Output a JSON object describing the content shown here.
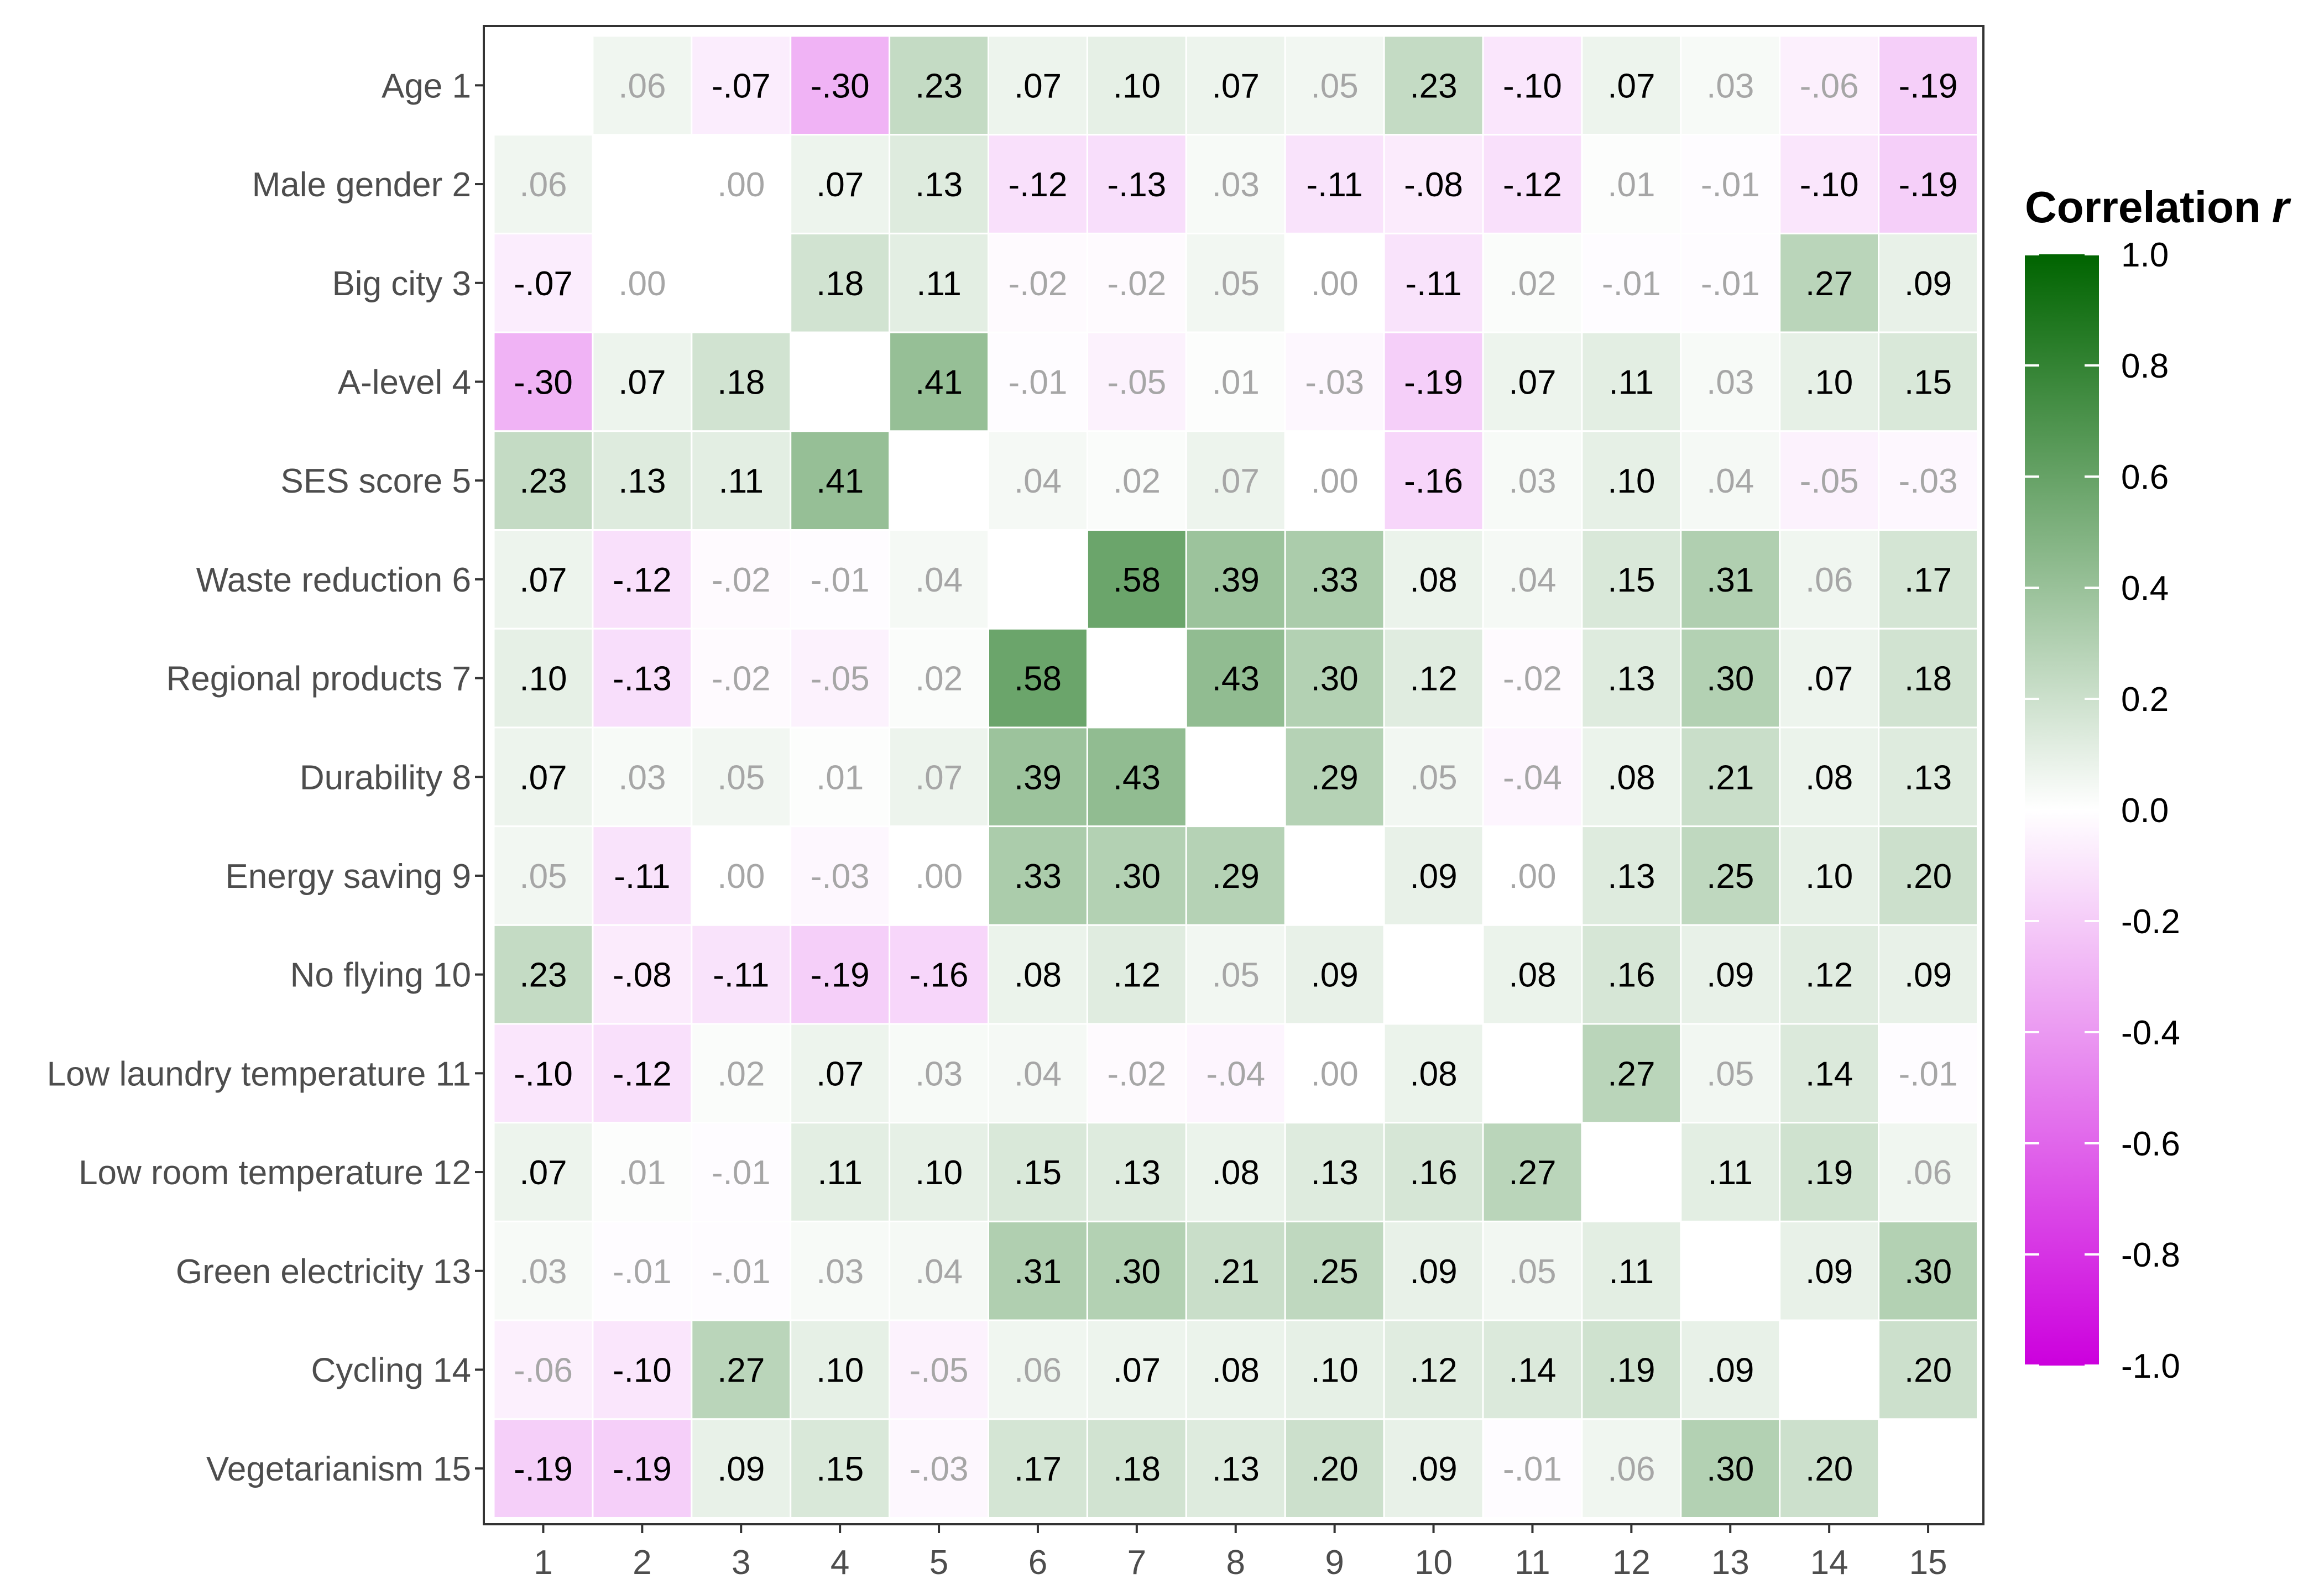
{
  "chart_data": {
    "type": "heatmap",
    "legend_title": "Correlation",
    "legend_title_symbol": "r",
    "legend_position": "right",
    "scale_range": [
      -1.0,
      1.0
    ],
    "legend_ticks": [
      "1.0",
      "0.8",
      "0.6",
      "0.4",
      "0.2",
      "0.0",
      "-0.2",
      "-0.4",
      "-0.6",
      "-0.8",
      "-1.0"
    ],
    "legend_tick_values": [
      1.0,
      0.8,
      0.6,
      0.4,
      0.2,
      0.0,
      -0.2,
      -0.4,
      -0.6,
      -0.8,
      -1.0
    ],
    "colors": {
      "negative": "#cc00dd",
      "zero": "#ffffff",
      "positive": "#006400",
      "significant_text": "#000000",
      "nonsignificant_text": "#a6a6a6"
    },
    "row_labels": [
      "Age 1",
      "Male gender 2",
      "Big city 3",
      "A-level 4",
      "SES score 5",
      "Waste reduction 6",
      "Regional products 7",
      "Durability 8",
      "Energy saving 9",
      "No flying 10",
      "Low laundry temperature 11",
      "Low room temperature 12",
      "Green electricity 13",
      "Cycling 14",
      "Vegetarianism 15"
    ],
    "col_labels": [
      "1",
      "2",
      "3",
      "4",
      "5",
      "6",
      "7",
      "8",
      "9",
      "10",
      "11",
      "12",
      "13",
      "14",
      "15"
    ],
    "values": [
      [
        null,
        0.06,
        -0.07,
        -0.3,
        0.23,
        0.07,
        0.1,
        0.07,
        0.05,
        0.23,
        -0.1,
        0.07,
        0.03,
        -0.06,
        -0.19
      ],
      [
        0.06,
        null,
        0.0,
        0.07,
        0.13,
        -0.12,
        -0.13,
        0.03,
        -0.11,
        -0.08,
        -0.12,
        0.01,
        -0.01,
        -0.1,
        -0.19
      ],
      [
        -0.07,
        0.0,
        null,
        0.18,
        0.11,
        -0.02,
        -0.02,
        0.05,
        0.0,
        -0.11,
        0.02,
        -0.01,
        -0.01,
        0.27,
        0.09
      ],
      [
        -0.3,
        0.07,
        0.18,
        null,
        0.41,
        -0.01,
        -0.05,
        0.01,
        -0.03,
        -0.19,
        0.07,
        0.11,
        0.03,
        0.1,
        0.15
      ],
      [
        0.23,
        0.13,
        0.11,
        0.41,
        null,
        0.04,
        0.02,
        0.07,
        0.0,
        -0.16,
        0.03,
        0.1,
        0.04,
        -0.05,
        -0.03
      ],
      [
        0.07,
        -0.12,
        -0.02,
        -0.01,
        0.04,
        null,
        0.58,
        0.39,
        0.33,
        0.08,
        0.04,
        0.15,
        0.31,
        0.06,
        0.17
      ],
      [
        0.1,
        -0.13,
        -0.02,
        -0.05,
        0.02,
        0.58,
        null,
        0.43,
        0.3,
        0.12,
        -0.02,
        0.13,
        0.3,
        0.07,
        0.18
      ],
      [
        0.07,
        0.03,
        0.05,
        0.01,
        0.07,
        0.39,
        0.43,
        null,
        0.29,
        0.05,
        -0.04,
        0.08,
        0.21,
        0.08,
        0.13
      ],
      [
        0.05,
        -0.11,
        0.0,
        -0.03,
        0.0,
        0.33,
        0.3,
        0.29,
        null,
        0.09,
        0.0,
        0.13,
        0.25,
        0.1,
        0.2
      ],
      [
        0.23,
        -0.08,
        -0.11,
        -0.19,
        -0.16,
        0.08,
        0.12,
        0.05,
        0.09,
        null,
        0.08,
        0.16,
        0.09,
        0.12,
        0.09
      ],
      [
        -0.1,
        -0.12,
        0.02,
        0.07,
        0.03,
        0.04,
        -0.02,
        -0.04,
        0.0,
        0.08,
        null,
        0.27,
        0.05,
        0.14,
        -0.01
      ],
      [
        0.07,
        0.01,
        -0.01,
        0.11,
        0.1,
        0.15,
        0.13,
        0.08,
        0.13,
        0.16,
        0.27,
        null,
        0.11,
        0.19,
        0.06
      ],
      [
        0.03,
        -0.01,
        -0.01,
        0.03,
        0.04,
        0.31,
        0.3,
        0.21,
        0.25,
        0.09,
        0.05,
        0.11,
        null,
        0.09,
        0.3
      ],
      [
        -0.06,
        -0.1,
        0.27,
        0.1,
        -0.05,
        0.06,
        0.07,
        0.08,
        0.1,
        0.12,
        0.14,
        0.19,
        0.09,
        null,
        0.2
      ],
      [
        -0.19,
        -0.19,
        0.09,
        0.15,
        -0.03,
        0.17,
        0.18,
        0.13,
        0.2,
        0.09,
        -0.01,
        0.06,
        0.3,
        0.2,
        null
      ]
    ],
    "labels": [
      [
        "",
        ".06",
        "-.07",
        "-.30",
        ".23",
        ".07",
        ".10",
        ".07",
        ".05",
        ".23",
        "-.10",
        ".07",
        ".03",
        "-.06",
        "-.19"
      ],
      [
        ".06",
        "",
        ".00",
        ".07",
        ".13",
        "-.12",
        "-.13",
        ".03",
        "-.11",
        "-.08",
        "-.12",
        ".01",
        "-.01",
        "-.10",
        "-.19"
      ],
      [
        "-.07",
        ".00",
        "",
        ".18",
        ".11",
        "-.02",
        "-.02",
        ".05",
        ".00",
        "-.11",
        ".02",
        "-.01",
        "-.01",
        ".27",
        ".09"
      ],
      [
        "-.30",
        ".07",
        ".18",
        "",
        ".41",
        "-.01",
        "-.05",
        ".01",
        "-.03",
        "-.19",
        ".07",
        ".11",
        ".03",
        ".10",
        ".15"
      ],
      [
        ".23",
        ".13",
        ".11",
        ".41",
        "",
        ".04",
        ".02",
        ".07",
        ".00",
        "-.16",
        ".03",
        ".10",
        ".04",
        "-.05",
        "-.03"
      ],
      [
        ".07",
        "-.12",
        "-.02",
        "-.01",
        ".04",
        "",
        ".58",
        ".39",
        ".33",
        ".08",
        ".04",
        ".15",
        ".31",
        ".06",
        ".17"
      ],
      [
        ".10",
        "-.13",
        "-.02",
        "-.05",
        ".02",
        ".58",
        "",
        ".43",
        ".30",
        ".12",
        "-.02",
        ".13",
        ".30",
        ".07",
        ".18"
      ],
      [
        ".07",
        ".03",
        ".05",
        ".01",
        ".07",
        ".39",
        ".43",
        "",
        ".29",
        ".05",
        "-.04",
        ".08",
        ".21",
        ".08",
        ".13"
      ],
      [
        ".05",
        "-.11",
        ".00",
        "-.03",
        ".00",
        ".33",
        ".30",
        ".29",
        "",
        ".09",
        ".00",
        ".13",
        ".25",
        ".10",
        ".20"
      ],
      [
        ".23",
        "-.08",
        "-.11",
        "-.19",
        "-.16",
        ".08",
        ".12",
        ".05",
        ".09",
        "",
        ".08",
        ".16",
        ".09",
        ".12",
        ".09"
      ],
      [
        "-.10",
        "-.12",
        ".02",
        ".07",
        ".03",
        ".04",
        "-.02",
        "-.04",
        ".00",
        ".08",
        "",
        ".27",
        ".05",
        ".14",
        "-.01"
      ],
      [
        ".07",
        ".01",
        "-.01",
        ".11",
        ".10",
        ".15",
        ".13",
        ".08",
        ".13",
        ".16",
        ".27",
        "",
        ".11",
        ".19",
        ".06"
      ],
      [
        ".03",
        "-.01",
        "-.01",
        ".03",
        ".04",
        ".31",
        ".30",
        ".21",
        ".25",
        ".09",
        ".05",
        ".11",
        "",
        ".09",
        ".30"
      ],
      [
        "-.06",
        "-.10",
        ".27",
        ".10",
        "-.05",
        ".06",
        ".07",
        ".08",
        ".10",
        ".12",
        ".14",
        ".19",
        ".09",
        "",
        ".20"
      ],
      [
        "-.19",
        "-.19",
        ".09",
        ".15",
        "-.03",
        ".17",
        ".18",
        ".13",
        ".20",
        ".09",
        "-.01",
        ".06",
        ".30",
        ".20",
        ""
      ]
    ],
    "significant": [
      [
        false,
        false,
        true,
        true,
        true,
        true,
        true,
        true,
        false,
        true,
        true,
        true,
        false,
        false,
        true
      ],
      [
        false,
        false,
        false,
        true,
        true,
        true,
        true,
        false,
        true,
        true,
        true,
        false,
        false,
        true,
        true
      ],
      [
        true,
        false,
        false,
        true,
        true,
        false,
        false,
        false,
        false,
        true,
        false,
        false,
        false,
        true,
        true
      ],
      [
        true,
        true,
        true,
        false,
        true,
        false,
        false,
        false,
        false,
        true,
        true,
        true,
        false,
        true,
        true
      ],
      [
        true,
        true,
        true,
        true,
        false,
        false,
        false,
        false,
        false,
        true,
        false,
        true,
        false,
        false,
        false
      ],
      [
        true,
        true,
        false,
        false,
        false,
        false,
        true,
        true,
        true,
        true,
        false,
        true,
        true,
        false,
        true
      ],
      [
        true,
        true,
        false,
        false,
        false,
        true,
        false,
        true,
        true,
        true,
        false,
        true,
        true,
        true,
        true
      ],
      [
        true,
        false,
        false,
        false,
        false,
        true,
        true,
        false,
        true,
        false,
        false,
        true,
        true,
        true,
        true
      ],
      [
        false,
        true,
        false,
        false,
        false,
        true,
        true,
        true,
        false,
        true,
        false,
        true,
        true,
        true,
        true
      ],
      [
        true,
        true,
        true,
        true,
        true,
        true,
        true,
        false,
        true,
        false,
        true,
        true,
        true,
        true,
        true
      ],
      [
        true,
        true,
        false,
        true,
        false,
        false,
        false,
        false,
        false,
        true,
        false,
        true,
        false,
        true,
        false
      ],
      [
        true,
        false,
        false,
        true,
        true,
        true,
        true,
        true,
        true,
        true,
        true,
        false,
        true,
        true,
        false
      ],
      [
        false,
        false,
        false,
        false,
        false,
        true,
        true,
        true,
        true,
        true,
        false,
        true,
        false,
        true,
        true
      ],
      [
        false,
        true,
        true,
        true,
        false,
        false,
        true,
        true,
        true,
        true,
        true,
        true,
        true,
        false,
        true
      ],
      [
        true,
        true,
        true,
        true,
        false,
        true,
        true,
        true,
        true,
        true,
        false,
        false,
        true,
        true,
        false
      ]
    ]
  }
}
